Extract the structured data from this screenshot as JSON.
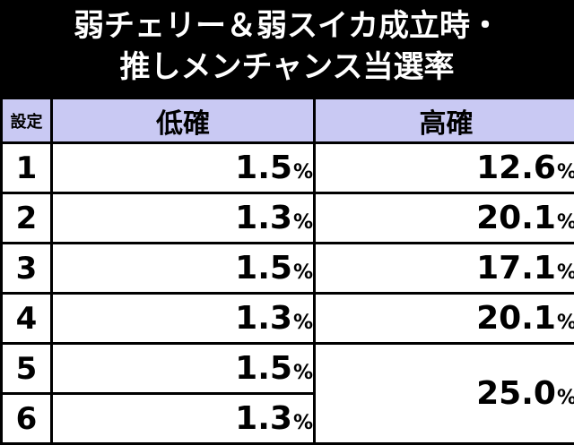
{
  "title": {
    "line1": "弱チェリー＆弱スイカ成立時・",
    "line2": "推しメンチャンス当選率"
  },
  "table": {
    "headers": {
      "setting": "設定",
      "low": "低確",
      "high": "高確"
    },
    "rows": [
      {
        "setting": "1",
        "low": "1.5",
        "high": "12.6"
      },
      {
        "setting": "2",
        "low": "1.3",
        "high": "20.1"
      },
      {
        "setting": "3",
        "low": "1.5",
        "high": "17.1"
      },
      {
        "setting": "4",
        "low": "1.3",
        "high": "20.1"
      },
      {
        "setting": "5",
        "low": "1.5",
        "high": "25.0"
      },
      {
        "setting": "6",
        "low": "1.3",
        "high": ""
      }
    ],
    "percent_sign": "%"
  },
  "colors": {
    "background": "#000000",
    "header_fill": "#c9c9f3",
    "cell_fill": "#ffffff",
    "title_text": "#ffffff"
  }
}
